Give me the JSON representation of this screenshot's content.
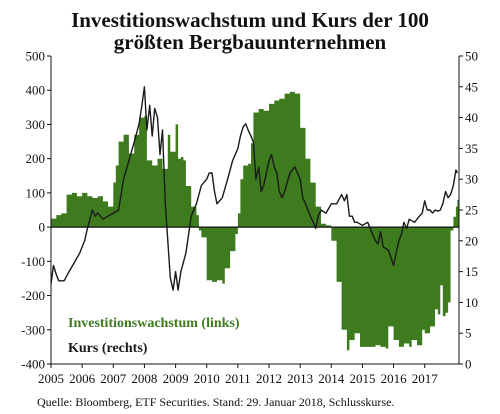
{
  "chart_data": {
    "type": "bar+line",
    "title_lines": [
      "Investitionswachstum und Kurs der 100",
      "größten Bergbauunternehmen"
    ],
    "source": "Quelle: Bloomberg, ETF Securities. Stand: 29. Januar 2018, Schlusskurse.",
    "x_tick_labels": [
      "2005",
      "2006",
      "2007",
      "2008",
      "2009",
      "2010",
      "2011",
      "2012",
      "2013",
      "2014",
      "2015",
      "2016",
      "2017"
    ],
    "x_range": [
      2005.0,
      2018.1
    ],
    "y_left": {
      "ticks": [
        500,
        400,
        300,
        200,
        100,
        0,
        -100,
        -200,
        -300,
        -400
      ],
      "lim": [
        -400,
        500
      ]
    },
    "y_right": {
      "ticks": [
        50,
        45,
        40,
        35,
        30,
        25,
        20,
        15,
        10,
        5,
        0
      ],
      "lim": [
        0,
        50
      ]
    },
    "grid": false,
    "legend": [
      {
        "label": "Investitionswachstum (links)",
        "color": "#3e7b1e"
      },
      {
        "label": "Kurs (rechts)",
        "color": "#1a1a1a"
      }
    ],
    "series": [
      {
        "name": "Investitionswachstum (links)",
        "axis": "left",
        "style": "bar",
        "color": "#3e7b1e",
        "points": [
          [
            2005.0,
            25
          ],
          [
            2005.17,
            35
          ],
          [
            2005.33,
            40
          ],
          [
            2005.5,
            95
          ],
          [
            2005.67,
            100
          ],
          [
            2005.83,
            90
          ],
          [
            2006.0,
            100
          ],
          [
            2006.17,
            90
          ],
          [
            2006.33,
            85
          ],
          [
            2006.5,
            90
          ],
          [
            2006.67,
            75
          ],
          [
            2006.83,
            60
          ],
          [
            2007.0,
            130
          ],
          [
            2007.08,
            180
          ],
          [
            2007.17,
            250
          ],
          [
            2007.33,
            270
          ],
          [
            2007.5,
            215
          ],
          [
            2007.58,
            215
          ],
          [
            2007.67,
            270
          ],
          [
            2007.83,
            320
          ],
          [
            2008.0,
            325
          ],
          [
            2008.08,
            195
          ],
          [
            2008.25,
            180
          ],
          [
            2008.42,
            200
          ],
          [
            2008.58,
            170
          ],
          [
            2008.75,
            270
          ],
          [
            2008.83,
            220
          ],
          [
            2009.0,
            300
          ],
          [
            2009.08,
            200
          ],
          [
            2009.17,
            205
          ],
          [
            2009.25,
            195
          ],
          [
            2009.33,
            120
          ],
          [
            2009.5,
            60
          ],
          [
            2009.67,
            35
          ],
          [
            2009.75,
            -10
          ],
          [
            2009.83,
            -30
          ],
          [
            2010.0,
            -155
          ],
          [
            2010.17,
            -160
          ],
          [
            2010.33,
            -155
          ],
          [
            2010.5,
            -165
          ],
          [
            2010.58,
            -120
          ],
          [
            2010.75,
            -70
          ],
          [
            2010.92,
            -20
          ],
          [
            2011.0,
            40
          ],
          [
            2011.08,
            140
          ],
          [
            2011.17,
            180
          ],
          [
            2011.33,
            185
          ],
          [
            2011.42,
            245
          ],
          [
            2011.5,
            335
          ],
          [
            2011.67,
            345
          ],
          [
            2011.83,
            340
          ],
          [
            2012.0,
            360
          ],
          [
            2012.17,
            370
          ],
          [
            2012.33,
            375
          ],
          [
            2012.5,
            390
          ],
          [
            2012.67,
            395
          ],
          [
            2012.83,
            390
          ],
          [
            2013.0,
            290
          ],
          [
            2013.17,
            200
          ],
          [
            2013.33,
            130
          ],
          [
            2013.5,
            60
          ],
          [
            2013.67,
            10
          ],
          [
            2013.83,
            5
          ],
          [
            2014.0,
            -40
          ],
          [
            2014.17,
            -160
          ],
          [
            2014.33,
            -300
          ],
          [
            2014.5,
            -360
          ],
          [
            2014.58,
            -330
          ],
          [
            2014.75,
            -310
          ],
          [
            2014.92,
            -350
          ],
          [
            2015.17,
            -350
          ],
          [
            2015.42,
            -345
          ],
          [
            2015.58,
            -350
          ],
          [
            2015.75,
            -355
          ],
          [
            2015.83,
            -290
          ],
          [
            2016.0,
            -330
          ],
          [
            2016.17,
            -350
          ],
          [
            2016.33,
            -340
          ],
          [
            2016.5,
            -350
          ],
          [
            2016.58,
            -330
          ],
          [
            2016.75,
            -345
          ],
          [
            2016.92,
            -300
          ],
          [
            2017.0,
            -310
          ],
          [
            2017.17,
            -290
          ],
          [
            2017.33,
            -240
          ],
          [
            2017.42,
            -255
          ],
          [
            2017.5,
            -170
          ],
          [
            2017.58,
            -260
          ],
          [
            2017.67,
            -250
          ],
          [
            2017.75,
            -220
          ],
          [
            2017.83,
            -10
          ],
          [
            2017.92,
            30
          ],
          [
            2018.0,
            60
          ],
          [
            2018.05,
            80
          ]
        ]
      },
      {
        "name": "Kurs (rechts)",
        "axis": "right",
        "style": "line",
        "color": "#1a1a1a",
        "points": [
          [
            2005.0,
            13
          ],
          [
            2005.08,
            16
          ],
          [
            2005.17,
            14.5
          ],
          [
            2005.25,
            13.5
          ],
          [
            2005.42,
            13.5
          ],
          [
            2005.58,
            15
          ],
          [
            2005.75,
            16.5
          ],
          [
            2005.92,
            18
          ],
          [
            2006.08,
            20
          ],
          [
            2006.17,
            22
          ],
          [
            2006.33,
            25
          ],
          [
            2006.42,
            24
          ],
          [
            2006.5,
            24.5
          ],
          [
            2006.67,
            23.5
          ],
          [
            2006.83,
            24
          ],
          [
            2007.0,
            24.5
          ],
          [
            2007.17,
            25
          ],
          [
            2007.33,
            30
          ],
          [
            2007.5,
            33
          ],
          [
            2007.67,
            36
          ],
          [
            2007.83,
            39
          ],
          [
            2007.92,
            42
          ],
          [
            2008.0,
            45
          ],
          [
            2008.08,
            38
          ],
          [
            2008.17,
            42
          ],
          [
            2008.25,
            37
          ],
          [
            2008.33,
            41.5
          ],
          [
            2008.42,
            40
          ],
          [
            2008.5,
            34
          ],
          [
            2008.58,
            38
          ],
          [
            2008.67,
            26
          ],
          [
            2008.75,
            20
          ],
          [
            2008.83,
            14
          ],
          [
            2008.92,
            12
          ],
          [
            2009.0,
            15
          ],
          [
            2009.08,
            12
          ],
          [
            2009.17,
            15
          ],
          [
            2009.33,
            18
          ],
          [
            2009.5,
            24
          ],
          [
            2009.67,
            26
          ],
          [
            2009.83,
            29
          ],
          [
            2010.0,
            30
          ],
          [
            2010.08,
            31
          ],
          [
            2010.17,
            31
          ],
          [
            2010.25,
            28
          ],
          [
            2010.33,
            26
          ],
          [
            2010.5,
            27
          ],
          [
            2010.67,
            30
          ],
          [
            2010.83,
            33
          ],
          [
            2011.0,
            35
          ],
          [
            2011.08,
            37
          ],
          [
            2011.17,
            38.5
          ],
          [
            2011.25,
            39
          ],
          [
            2011.33,
            38
          ],
          [
            2011.42,
            37
          ],
          [
            2011.5,
            36
          ],
          [
            2011.58,
            30
          ],
          [
            2011.67,
            32
          ],
          [
            2011.75,
            28
          ],
          [
            2011.83,
            29
          ],
          [
            2012.0,
            33
          ],
          [
            2012.08,
            34
          ],
          [
            2012.17,
            32
          ],
          [
            2012.25,
            31
          ],
          [
            2012.33,
            28
          ],
          [
            2012.42,
            27
          ],
          [
            2012.5,
            28
          ],
          [
            2012.67,
            31
          ],
          [
            2012.83,
            32
          ],
          [
            2013.0,
            30
          ],
          [
            2013.08,
            27
          ],
          [
            2013.17,
            26
          ],
          [
            2013.33,
            24
          ],
          [
            2013.42,
            23
          ],
          [
            2013.5,
            22
          ],
          [
            2013.58,
            24
          ],
          [
            2013.67,
            25
          ],
          [
            2013.83,
            24.5
          ],
          [
            2014.0,
            26
          ],
          [
            2014.17,
            26
          ],
          [
            2014.33,
            27.5
          ],
          [
            2014.42,
            26.5
          ],
          [
            2014.5,
            27.5
          ],
          [
            2014.58,
            24
          ],
          [
            2014.67,
            24
          ],
          [
            2014.75,
            23
          ],
          [
            2014.83,
            23
          ],
          [
            2015.0,
            22.5
          ],
          [
            2015.17,
            23
          ],
          [
            2015.33,
            21
          ],
          [
            2015.42,
            20
          ],
          [
            2015.5,
            19.5
          ],
          [
            2015.58,
            21.5
          ],
          [
            2015.67,
            19
          ],
          [
            2015.83,
            18.5
          ],
          [
            2016.0,
            16
          ],
          [
            2016.08,
            18
          ],
          [
            2016.17,
            20
          ],
          [
            2016.25,
            21
          ],
          [
            2016.33,
            23
          ],
          [
            2016.42,
            22
          ],
          [
            2016.5,
            23.5
          ],
          [
            2016.67,
            23
          ],
          [
            2016.83,
            24
          ],
          [
            2016.92,
            24.5
          ],
          [
            2017.0,
            26.5
          ],
          [
            2017.08,
            25
          ],
          [
            2017.17,
            25
          ],
          [
            2017.25,
            24.5
          ],
          [
            2017.33,
            25
          ],
          [
            2017.42,
            24.8
          ],
          [
            2017.5,
            25
          ],
          [
            2017.58,
            26
          ],
          [
            2017.67,
            28
          ],
          [
            2017.75,
            27
          ],
          [
            2017.83,
            27.5
          ],
          [
            2017.92,
            29
          ],
          [
            2018.0,
            31.5
          ],
          [
            2018.05,
            31
          ]
        ]
      }
    ]
  }
}
